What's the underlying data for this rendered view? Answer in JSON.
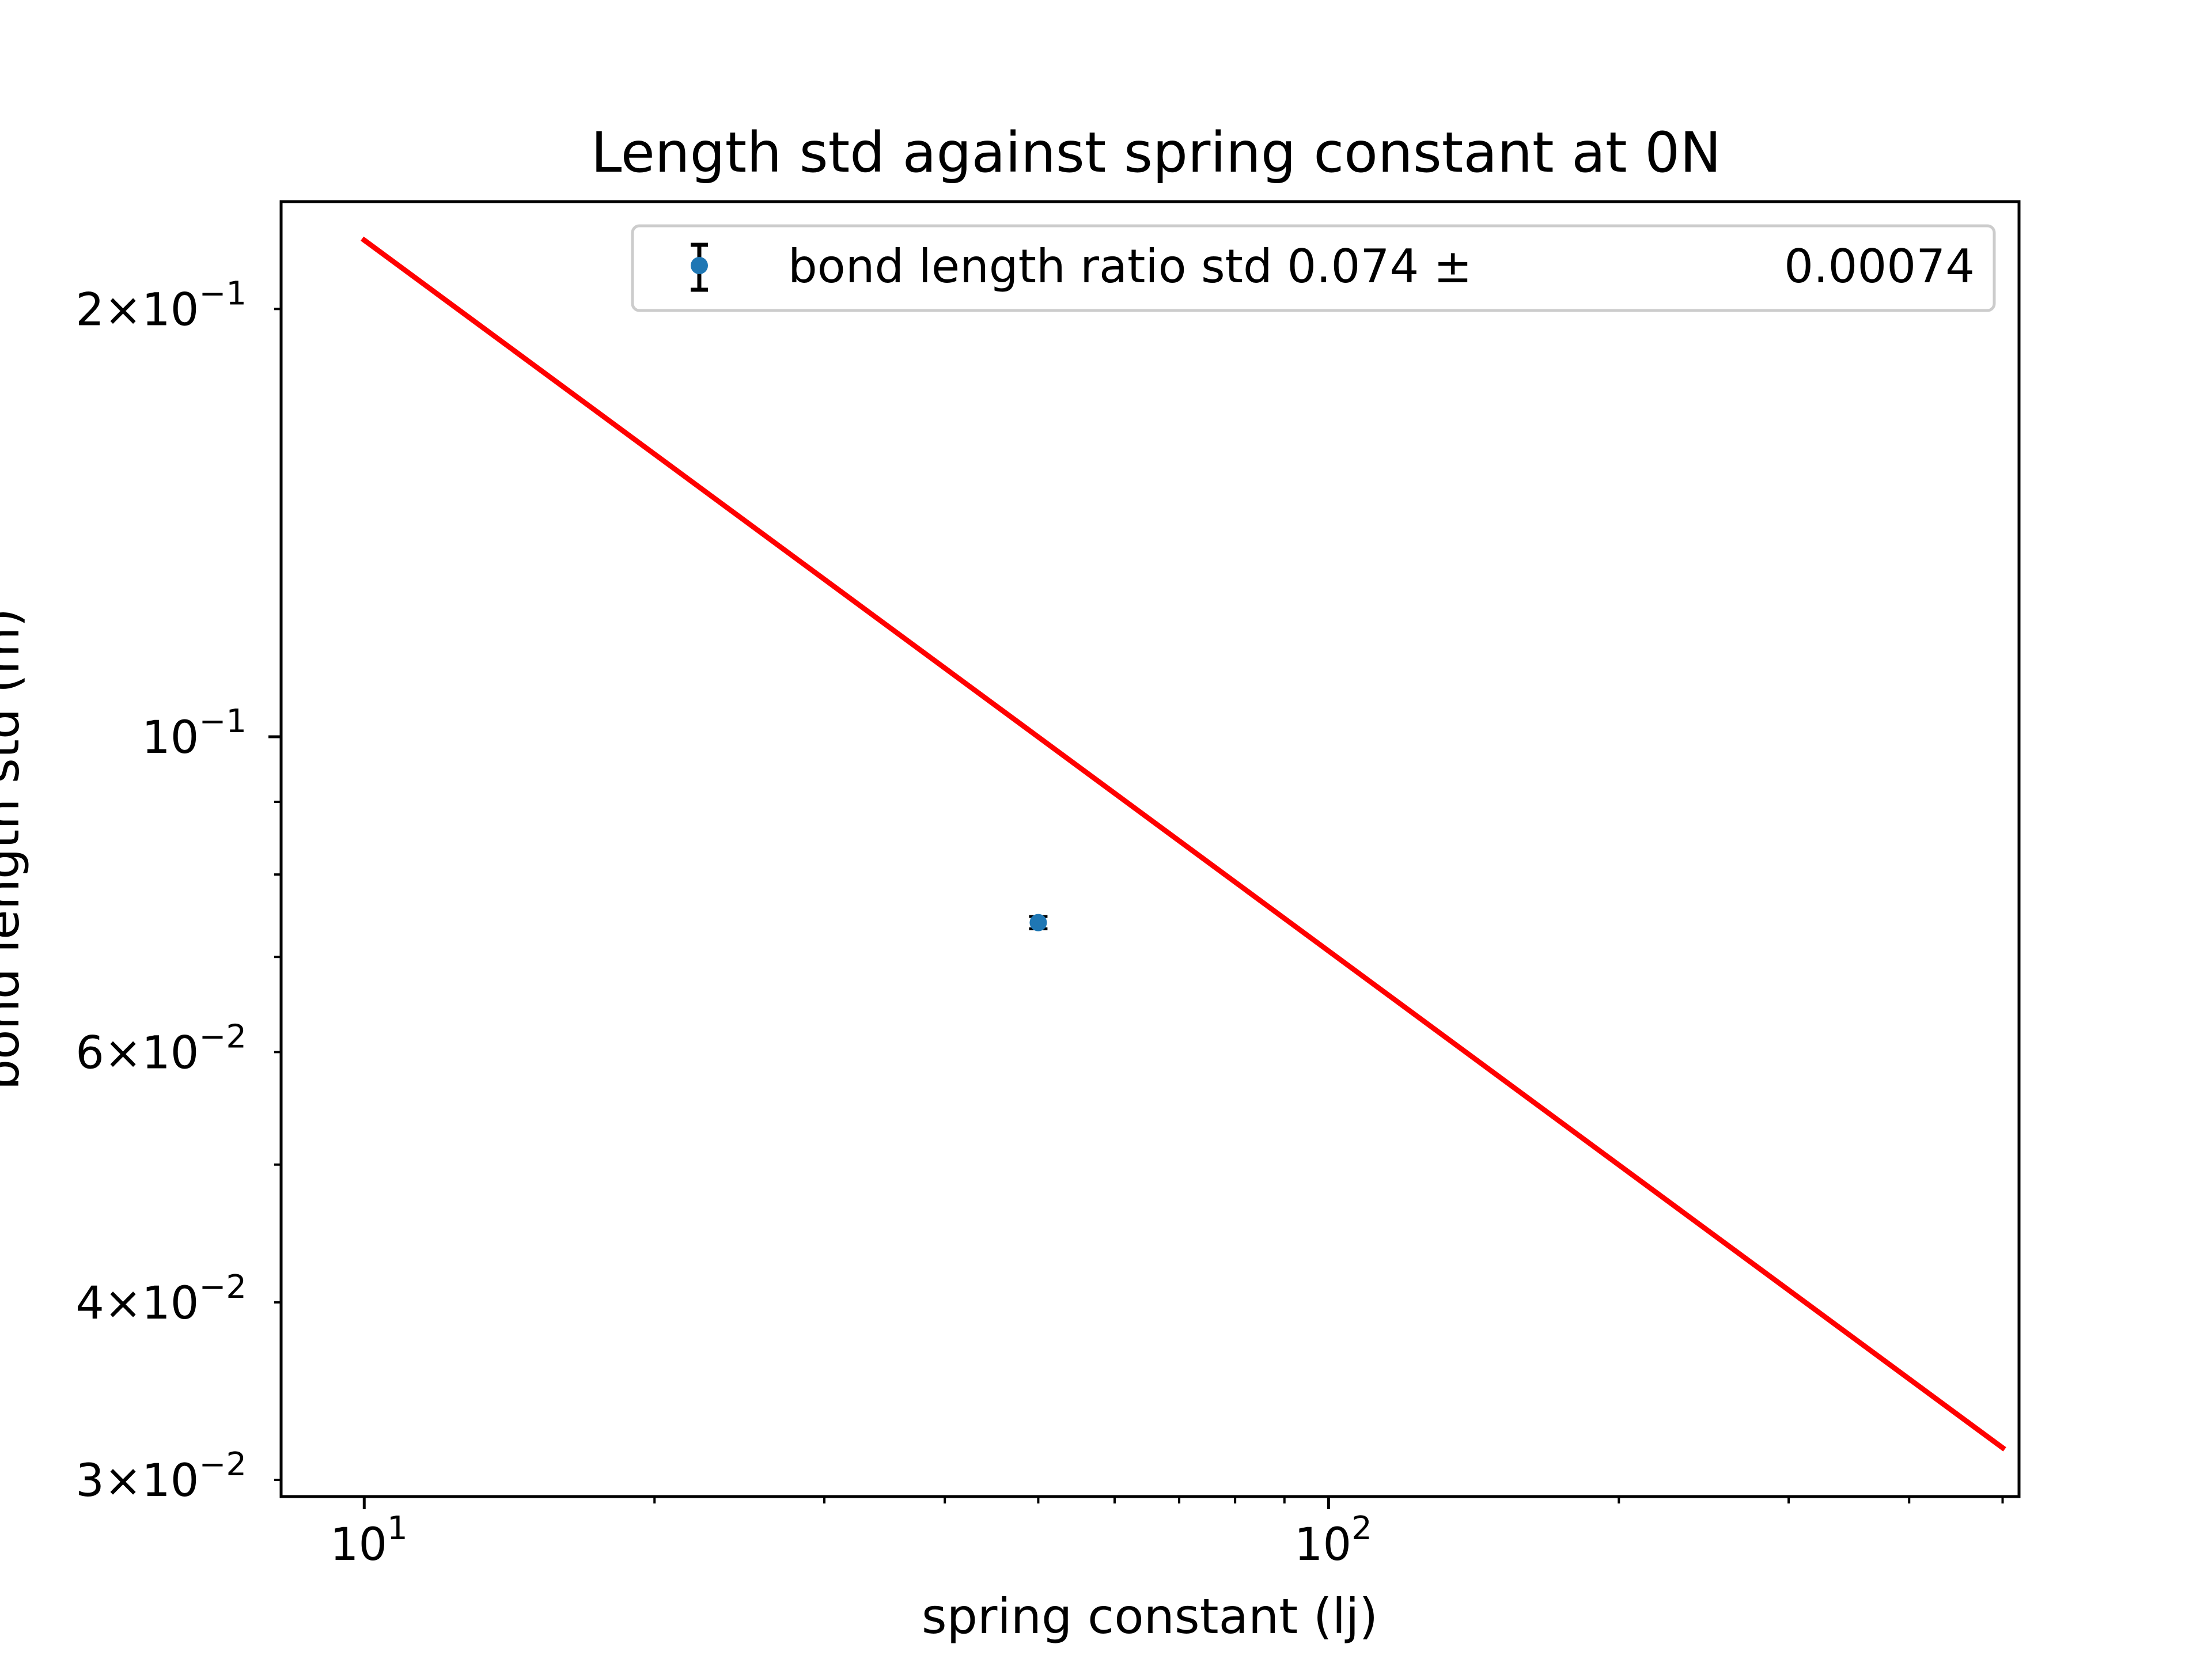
{
  "chart_data": {
    "type": "scatter",
    "title": "Length std against spring constant at 0N",
    "xlabel": "spring constant (lj)",
    "ylabel": "bond length std (m)",
    "xscale": "log",
    "yscale": "log",
    "xlim": [
      8.2,
      520
    ],
    "ylim": [
      0.0292,
      0.238
    ],
    "grid": false,
    "legend_position": "top-right",
    "x_major_ticks": [
      {
        "value": 10,
        "base": "10",
        "exp": "1"
      },
      {
        "value": 100,
        "base": "10",
        "exp": "2"
      }
    ],
    "x_minor_ticks": [
      20,
      30,
      40,
      50,
      60,
      70,
      80,
      90,
      200,
      300,
      400,
      500
    ],
    "y_major_ticks": [
      {
        "value": 0.1,
        "mantissa": "",
        "base": "10",
        "exp": "−1"
      }
    ],
    "y_minor_ticks": [
      {
        "value": 0.2,
        "mantissa": "2",
        "base": "10",
        "exp": "−1"
      },
      {
        "value": 0.06,
        "mantissa": "6",
        "base": "10",
        "exp": "−2"
      },
      {
        "value": 0.04,
        "mantissa": "4",
        "base": "10",
        "exp": "−2"
      },
      {
        "value": 0.03,
        "mantissa": "3",
        "base": "10",
        "exp": "−2"
      },
      {
        "value": 0.05,
        "mantissa": "",
        "base": "",
        "exp": ""
      },
      {
        "value": 0.07,
        "mantissa": "",
        "base": "",
        "exp": ""
      },
      {
        "value": 0.08,
        "mantissa": "",
        "base": "",
        "exp": ""
      },
      {
        "value": 0.09,
        "mantissa": "",
        "base": "",
        "exp": ""
      }
    ],
    "series": [
      {
        "name": "bond length ratio std 0.074 ±            0.00074",
        "kind": "errorbar",
        "color": "#1f77b4",
        "errorbar_color": "#000000",
        "x": [
          50
        ],
        "y": [
          0.074
        ],
        "yerr": [
          0.00074
        ]
      },
      {
        "kind": "line",
        "color": "#ff0000",
        "x": [
          10,
          500
        ],
        "y": [
          0.2236,
          0.0316
        ]
      }
    ],
    "legend": {
      "text_left": "bond length ratio std 0.074 ±",
      "text_right": "0.00074"
    }
  }
}
